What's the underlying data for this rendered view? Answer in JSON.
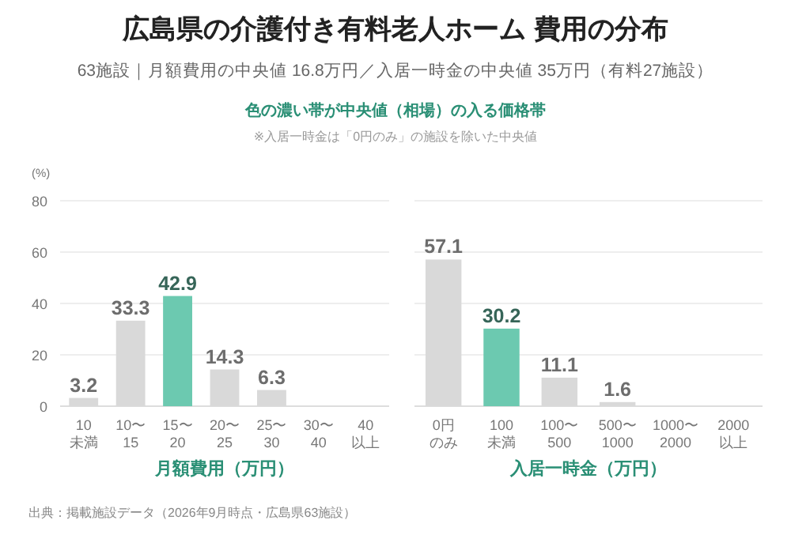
{
  "chart_data": [
    {
      "type": "bar",
      "title": "広島県の介護付き有料老人ホーム 費用の分布",
      "subtitle": "63施設｜月額費用の中央値 16.8万円／入居一時金の中央値 35万円（有料27施設）",
      "annotations": [
        "色の濃い帯が中央値（相場）の入る価格帯",
        "※入居一時金は「0円のみ」の施設を除いた中央値",
        "出典：掲載施設データ（2026年9月時点・広島県63施設）"
      ],
      "ylabel": "(%)",
      "xlabel": "月額費用（万円）",
      "categories": [
        "10\n未満",
        "10〜\n15",
        "15〜\n20",
        "20〜\n25",
        "25〜\n30",
        "30〜\n40",
        "40\n以上"
      ],
      "values": [
        3.2,
        33.3,
        42.9,
        14.3,
        6.3,
        0,
        0
      ],
      "colors": [
        "#d9d9d9",
        "#d9d9d9",
        "#6cc9b0",
        "#d9d9d9",
        "#d9d9d9",
        "#d9d9d9",
        "#d9d9d9"
      ],
      "value_labels": [
        "3.2",
        "33.3",
        "42.9",
        "14.3",
        "6.3",
        null,
        null
      ],
      "ylim": [
        0,
        80
      ],
      "yticks": [
        0,
        20,
        40,
        60,
        80
      ],
      "grid": "y"
    },
    {
      "type": "bar",
      "xlabel": "入居一時金（万円）",
      "categories": [
        "0円のみ",
        "100\n未満",
        "100〜\n500",
        "500〜\n1000",
        "1000〜\n2000",
        "2000\n以上"
      ],
      "values": [
        57.1,
        30.2,
        11.1,
        1.6,
        0,
        0
      ],
      "colors": [
        "#d9d9d9",
        "#6cc9b0",
        "#d9d9d9",
        "#d9d9d9",
        "#d9d9d9",
        "#d9d9d9"
      ],
      "value_labels": [
        "57.1",
        "30.2",
        "11.1",
        "1.6",
        null,
        null
      ],
      "ylim": [
        0,
        80
      ],
      "yticks": [
        0,
        20,
        40,
        60,
        80
      ],
      "grid": "y",
      "tick_labels": "x"
    }
  ]
}
